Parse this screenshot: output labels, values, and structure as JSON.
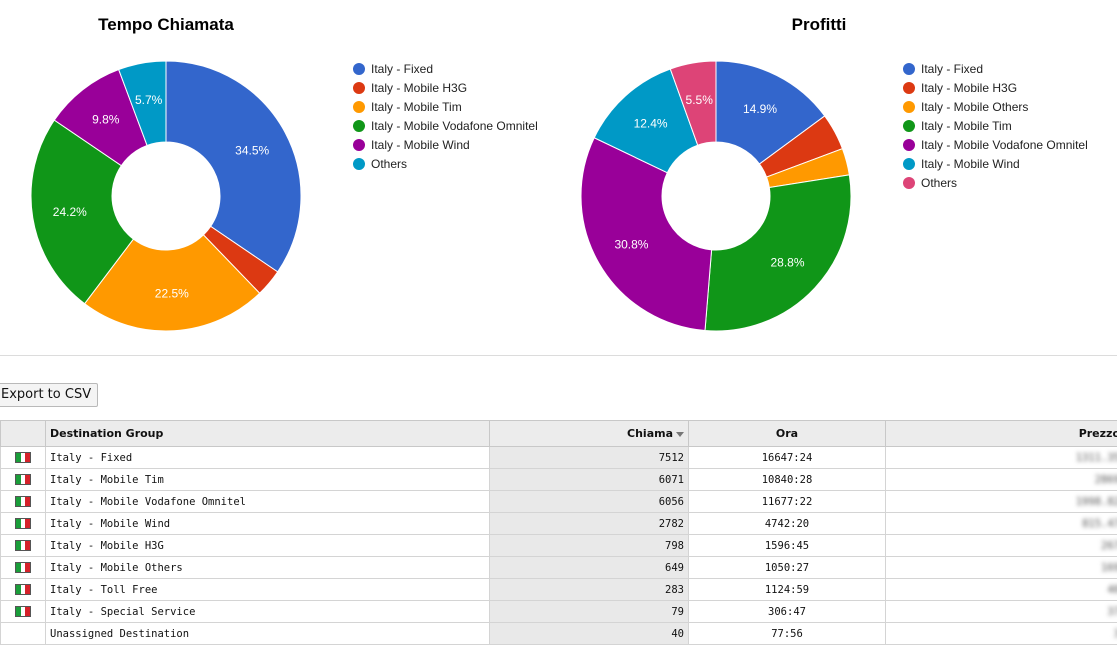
{
  "charts": {
    "chart_data": [
      {
        "type": "pie",
        "title": "Tempo Chiamata",
        "legend_position": "right",
        "slices": [
          {
            "label": "Italy - Fixed",
            "value": 34.5,
            "display": "34.5%",
            "color": "#3366cc"
          },
          {
            "label": "Italy - Mobile H3G",
            "value": 3.3,
            "display": "",
            "color": "#dc3912"
          },
          {
            "label": "Italy - Mobile Tim",
            "value": 22.5,
            "display": "22.5%",
            "color": "#ff9900"
          },
          {
            "label": "Italy - Mobile Vodafone Omnitel",
            "value": 24.2,
            "display": "24.2%",
            "color": "#109618"
          },
          {
            "label": "Italy - Mobile Wind",
            "value": 9.8,
            "display": "9.8%",
            "color": "#990099"
          },
          {
            "label": "Others",
            "value": 5.7,
            "display": "5.7%",
            "color": "#0099c6"
          }
        ]
      },
      {
        "type": "pie",
        "title": "Profitti",
        "legend_position": "right",
        "slices": [
          {
            "label": "Italy - Fixed",
            "value": 14.9,
            "display": "14.9%",
            "color": "#3366cc"
          },
          {
            "label": "Italy - Mobile H3G",
            "value": 4.4,
            "display": "",
            "color": "#dc3912"
          },
          {
            "label": "Italy - Mobile Others",
            "value": 3.2,
            "display": "",
            "color": "#ff9900"
          },
          {
            "label": "Italy - Mobile Tim",
            "value": 28.8,
            "display": "28.8%",
            "color": "#109618"
          },
          {
            "label": "Italy - Mobile Vodafone Omnitel",
            "value": 30.8,
            "display": "30.8%",
            "color": "#990099"
          },
          {
            "label": "Italy - Mobile Wind",
            "value": 12.4,
            "display": "12.4%",
            "color": "#0099c6"
          },
          {
            "label": "Others",
            "value": 5.5,
            "display": "5.5%",
            "color": "#dd4477"
          }
        ]
      }
    ]
  },
  "toolbar": {
    "export_label": "Export to CSV"
  },
  "table": {
    "headers": {
      "destination": "Destination Group",
      "calls": "Chiama",
      "time": "Ora",
      "price": "Prezzo"
    },
    "rows": [
      {
        "flag": true,
        "destination": "Italy - Fixed",
        "calls": "7512",
        "time": "16647:24",
        "price": "1311.35"
      },
      {
        "flag": true,
        "destination": "Italy - Mobile Tim",
        "calls": "6071",
        "time": "10840:28",
        "price": "2869"
      },
      {
        "flag": true,
        "destination": "Italy - Mobile Vodafone Omnitel",
        "calls": "6056",
        "time": "11677:22",
        "price": "1998.82"
      },
      {
        "flag": true,
        "destination": "Italy - Mobile Wind",
        "calls": "2782",
        "time": "4742:20",
        "price": "815.47"
      },
      {
        "flag": true,
        "destination": "Italy - Mobile H3G",
        "calls": "798",
        "time": "1596:45",
        "price": "267"
      },
      {
        "flag": true,
        "destination": "Italy - Mobile Others",
        "calls": "649",
        "time": "1050:27",
        "price": "169"
      },
      {
        "flag": true,
        "destination": "Italy - Toll Free",
        "calls": "283",
        "time": "1124:59",
        "price": "40"
      },
      {
        "flag": true,
        "destination": "Italy - Special Service",
        "calls": "79",
        "time": "306:47",
        "price": "37"
      },
      {
        "flag": false,
        "destination": "Unassigned Destination",
        "calls": "40",
        "time": "77:56",
        "price": "3"
      }
    ]
  },
  "colors": {
    "flag_green": "#1a9e3a",
    "flag_white": "#ffffff",
    "flag_red": "#d5222a"
  }
}
